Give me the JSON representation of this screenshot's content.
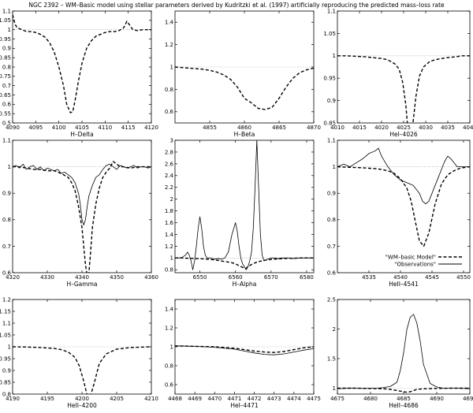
{
  "figure": {
    "title": "NGC 2392 – WM–Basic model using stellar parameters derived by Kudritzki et al. (1997) artificially reproducing the predicted mass–loss rate"
  },
  "chart_data": [
    {
      "type": "line",
      "xlabel": "H–Delta",
      "xlim": [
        4090,
        4120
      ],
      "ylim": [
        0.5,
        1.1
      ],
      "xticks": [
        4090,
        4095,
        4100,
        4105,
        4110,
        4115,
        4120
      ],
      "yticks": [
        0.5,
        0.55,
        0.6,
        0.65,
        0.7,
        0.75,
        0.8,
        0.85,
        0.9,
        0.95,
        1,
        1.05,
        1.1
      ],
      "ref_line": 1,
      "series": [
        {
          "style": "dashed",
          "x": [
            4090,
            4090.5,
            4091,
            4092,
            4093,
            4094,
            4095,
            4096,
            4097,
            4098,
            4099,
            4100,
            4101,
            4101.7,
            4102.5,
            4103,
            4103.5,
            4104.2,
            4105,
            4106,
            4107,
            4108,
            4109,
            4110,
            4111,
            4112,
            4113,
            4114,
            4114.7,
            4115.3,
            4116,
            4117,
            4118,
            4119,
            4120
          ],
          "y": [
            1.08,
            1.03,
            1.01,
            1.0,
            0.99,
            0.99,
            0.985,
            0.975,
            0.96,
            0.93,
            0.88,
            0.8,
            0.7,
            0.6,
            0.555,
            0.56,
            0.62,
            0.72,
            0.82,
            0.9,
            0.94,
            0.965,
            0.975,
            0.985,
            0.99,
            0.99,
            0.995,
            1.01,
            1.045,
            1.025,
            1.0,
            0.995,
            1.0,
            1.0,
            1.0
          ]
        }
      ]
    },
    {
      "type": "line",
      "xlabel": "H–Beta",
      "xlim": [
        4850,
        4870
      ],
      "ylim": [
        0.5,
        1.5
      ],
      "xticks": [
        4855,
        4860,
        4865,
        4870
      ],
      "yticks": [
        0.6,
        0.8,
        1,
        1.2,
        1.4
      ],
      "ref_line": 1,
      "series": [
        {
          "style": "dashed",
          "x": [
            4850,
            4852,
            4854,
            4855,
            4856,
            4857,
            4858,
            4859,
            4860,
            4861,
            4862,
            4863,
            4864,
            4865,
            4866,
            4867,
            4868,
            4869,
            4870
          ],
          "y": [
            1.0,
            0.99,
            0.98,
            0.97,
            0.955,
            0.93,
            0.89,
            0.82,
            0.72,
            0.68,
            0.63,
            0.62,
            0.64,
            0.72,
            0.82,
            0.9,
            0.95,
            0.975,
            0.99
          ]
        }
      ]
    },
    {
      "type": "line",
      "xlabel": "HeI–4026",
      "xlim": [
        4010,
        4040
      ],
      "ylim": [
        0.85,
        1.1
      ],
      "xticks": [
        4010,
        4015,
        4020,
        4025,
        4030,
        4035,
        4040
      ],
      "yticks": [
        0.85,
        0.9,
        0.95,
        1,
        1.05,
        1.1
      ],
      "ref_line": 1,
      "series": [
        {
          "style": "dashed",
          "x": [
            4010,
            4012,
            4014,
            4016,
            4018,
            4020,
            4021,
            4022,
            4023,
            4024,
            4024.8,
            4025.5,
            4026,
            4026.4,
            4027,
            4027.8,
            4028.6,
            4029.5,
            4031,
            4033,
            4035,
            4037,
            4038,
            4040
          ],
          "y": [
            1.0,
            1.0,
            0.999,
            0.998,
            0.996,
            0.994,
            0.992,
            0.988,
            0.982,
            0.97,
            0.94,
            0.89,
            0.83,
            0.82,
            0.84,
            0.91,
            0.955,
            0.975,
            0.988,
            0.993,
            0.996,
            0.998,
            1.0,
            1.0
          ]
        }
      ]
    },
    {
      "type": "line",
      "xlabel": "H–Gamma",
      "xlim": [
        4320,
        4360
      ],
      "ylim": [
        0.6,
        1.1
      ],
      "xticks": [
        4320,
        4330,
        4340,
        4350,
        4360
      ],
      "yticks": [
        0.6,
        0.7,
        0.8,
        0.9,
        1,
        1.1
      ],
      "ref_line": 1,
      "series": [
        {
          "style": "dashed",
          "x": [
            4320,
            4322,
            4324,
            4326,
            4328,
            4330,
            4332,
            4334,
            4336,
            4337,
            4338,
            4339,
            4340,
            4340.5,
            4341,
            4341.5,
            4342,
            4342.5,
            4343,
            4344,
            4345,
            4346,
            4347,
            4348,
            4349,
            4350,
            4351,
            4352,
            4354,
            4356,
            4358,
            4360
          ],
          "y": [
            1.0,
            1.0,
            0.995,
            0.99,
            0.99,
            0.985,
            0.985,
            0.975,
            0.96,
            0.94,
            0.91,
            0.85,
            0.77,
            0.7,
            0.63,
            0.59,
            0.6,
            0.68,
            0.77,
            0.86,
            0.92,
            0.96,
            0.98,
            0.995,
            1.02,
            1.01,
            1.0,
            1.0,
            0.995,
            1.0,
            1.0,
            1.0
          ]
        },
        {
          "style": "solid",
          "x": [
            4320,
            4321,
            4322,
            4323,
            4324,
            4325,
            4326,
            4327,
            4328,
            4329,
            4330,
            4331,
            4332,
            4333,
            4334,
            4335,
            4336,
            4337,
            4338,
            4339,
            4339.5,
            4340,
            4340.5,
            4341,
            4341.5,
            4342,
            4343,
            4344,
            4345,
            4346,
            4347,
            4348,
            4349,
            4350,
            4351,
            4352,
            4353,
            4354,
            4355,
            4356,
            4357,
            4358,
            4359,
            4360
          ],
          "y": [
            1.0,
            1.005,
            0.995,
            1.01,
            0.99,
            1.0,
            1.005,
            0.99,
            1.0,
            0.985,
            0.995,
            0.99,
            0.985,
            0.99,
            0.975,
            0.98,
            0.97,
            0.96,
            0.94,
            0.9,
            0.86,
            0.8,
            0.78,
            0.8,
            0.85,
            0.89,
            0.93,
            0.96,
            0.97,
            0.99,
            1.005,
            1.01,
            1.0,
            0.99,
            1.005,
            1.0,
            0.995,
            1.0,
            1.005,
            0.995,
            1.0,
            1.0,
            0.995,
            1.0
          ]
        }
      ]
    },
    {
      "type": "line",
      "xlabel": "H–Alpha",
      "xlim": [
        6543,
        6582
      ],
      "ylim": [
        0.75,
        3.0
      ],
      "xticks": [
        6550,
        6560,
        6570,
        6580
      ],
      "yticks": [
        0.8,
        1,
        1.2,
        1.4,
        1.6,
        1.8,
        2,
        2.2,
        2.4,
        2.6,
        2.8,
        3
      ],
      "ref_line": 1,
      "series": [
        {
          "style": "dashed",
          "x": [
            6543,
            6545,
            6547,
            6549,
            6551,
            6553,
            6555,
            6557,
            6559,
            6560,
            6561,
            6562,
            6562.8,
            6563.5,
            6564.5,
            6566,
            6568,
            6570,
            6572,
            6575,
            6578,
            6582
          ],
          "y": [
            1.0,
            1.0,
            0.995,
            0.99,
            0.985,
            0.975,
            0.96,
            0.94,
            0.92,
            0.9,
            0.87,
            0.84,
            0.82,
            0.85,
            0.89,
            0.93,
            0.96,
            0.975,
            0.985,
            0.995,
            1.0,
            1.0
          ]
        },
        {
          "style": "solid",
          "x": [
            6543,
            6544,
            6545,
            6546,
            6546.5,
            6547,
            6547.5,
            6548,
            6548.5,
            6549,
            6549.5,
            6550,
            6550.5,
            6551,
            6551.5,
            6552,
            6552.5,
            6553,
            6554,
            6555,
            6556,
            6557,
            6558,
            6559,
            6560,
            6560.5,
            6561,
            6561.5,
            6562,
            6562.5,
            6563,
            6563.5,
            6564,
            6564.5,
            6565,
            6565.5,
            6566,
            6566.5,
            6567,
            6567.5,
            6568,
            6569,
            6570,
            6571,
            6572,
            6573,
            6574,
            6575,
            6576,
            6578,
            6580,
            6582
          ],
          "y": [
            1.0,
            1.0,
            1.01,
            1.05,
            1.1,
            1.05,
            0.95,
            0.8,
            0.95,
            1.2,
            1.5,
            1.7,
            1.5,
            1.2,
            1.05,
            1.0,
            1.0,
            1.0,
            0.98,
            0.99,
            0.98,
            1.0,
            1.1,
            1.4,
            1.6,
            1.45,
            1.2,
            1.0,
            0.9,
            0.85,
            0.8,
            0.85,
            0.95,
            1.1,
            1.5,
            2.2,
            3.0,
            2.2,
            1.4,
            1.05,
            0.95,
            0.98,
            1.0,
            1.0,
            0.99,
            1.0,
            1.0,
            1.0,
            0.99,
            1.0,
            1.0,
            1.0
          ]
        }
      ]
    },
    {
      "type": "line",
      "xlabel": "HeII–4541",
      "xlim": [
        4530,
        4551
      ],
      "ylim": [
        0.6,
        1.1
      ],
      "xticks": [
        4535,
        4540,
        4545,
        4550
      ],
      "yticks": [
        0.6,
        0.7,
        0.8,
        0.9,
        1,
        1.1
      ],
      "ref_line": 1,
      "legend": {
        "position": "bottom-right",
        "entries": [
          "\"WM–basic Model\"",
          "\"Observations\""
        ]
      },
      "series": [
        {
          "name": "\"WM–basic Model\"",
          "style": "dashed",
          "x": [
            4530,
            4532,
            4534,
            4536,
            4537,
            4538,
            4539,
            4540,
            4541,
            4541.7,
            4542.3,
            4543,
            4543.7,
            4544.5,
            4545.5,
            4546.5,
            4547.5,
            4548.5,
            4549.5,
            4551
          ],
          "y": [
            1.0,
            0.998,
            0.996,
            0.993,
            0.99,
            0.985,
            0.975,
            0.955,
            0.92,
            0.87,
            0.8,
            0.72,
            0.7,
            0.75,
            0.86,
            0.935,
            0.97,
            0.985,
            0.995,
            1.0
          ]
        },
        {
          "name": "\"Observations\"",
          "style": "solid",
          "x": [
            4530,
            4531,
            4532,
            4533,
            4534,
            4535,
            4536,
            4536.5,
            4537,
            4538,
            4539,
            4540,
            4541,
            4542,
            4543,
            4543.5,
            4544,
            4544.5,
            4545,
            4546,
            4547,
            4547.5,
            4548,
            4549,
            4550,
            4551
          ],
          "y": [
            1.0,
            1.01,
            1.0,
            1.015,
            1.03,
            1.05,
            1.06,
            1.07,
            1.04,
            1.0,
            0.97,
            0.95,
            0.94,
            0.93,
            0.9,
            0.87,
            0.86,
            0.87,
            0.9,
            0.96,
            1.02,
            1.04,
            1.03,
            1.0,
            1.0,
            1.0
          ]
        }
      ]
    },
    {
      "type": "line",
      "xlabel": "HeII–4200",
      "xlim": [
        4190,
        4210
      ],
      "ylim": [
        0.8,
        1.2
      ],
      "xticks": [
        4190,
        4195,
        4200,
        4205,
        4210
      ],
      "yticks": [
        0.8,
        0.85,
        0.9,
        0.95,
        1,
        1.05,
        1.1,
        1.15,
        1.2
      ],
      "ref_line": 1,
      "series": [
        {
          "style": "dashed",
          "x": [
            4190,
            4192,
            4194,
            4196,
            4197,
            4198,
            4199,
            4199.6,
            4200.2,
            4200.7,
            4201.2,
            4201.8,
            4202.5,
            4203.5,
            4205,
            4207,
            4210
          ],
          "y": [
            1.0,
            0.999,
            0.997,
            0.993,
            0.988,
            0.978,
            0.955,
            0.92,
            0.86,
            0.8,
            0.79,
            0.85,
            0.93,
            0.97,
            0.99,
            0.997,
            1.0
          ]
        }
      ]
    },
    {
      "type": "line",
      "xlabel": "HeI–4471",
      "xlim": [
        4468,
        4475
      ],
      "ylim": [
        0.5,
        1.5
      ],
      "xticks": [
        4468,
        4469,
        4470,
        4471,
        4472,
        4473,
        4474,
        4475
      ],
      "yticks": [
        0.6,
        0.8,
        1,
        1.2,
        1.4
      ],
      "ref_line": 1,
      "series": [
        {
          "style": "dashed",
          "x": [
            4468,
            4469,
            4470,
            4471,
            4471.5,
            4472,
            4472.5,
            4473,
            4473.5,
            4474,
            4474.5,
            4475
          ],
          "y": [
            1.01,
            1.005,
            1.0,
            0.985,
            0.97,
            0.955,
            0.945,
            0.94,
            0.95,
            0.97,
            0.99,
            1.0
          ]
        },
        {
          "style": "solid",
          "x": [
            4468,
            4469,
            4470,
            4471,
            4471.5,
            4472,
            4472.5,
            4473,
            4473.5,
            4474,
            4474.5,
            4475
          ],
          "y": [
            1.01,
            1.005,
            0.995,
            0.975,
            0.955,
            0.935,
            0.92,
            0.915,
            0.925,
            0.945,
            0.965,
            0.98
          ]
        }
      ]
    },
    {
      "type": "line",
      "xlabel": "HeII–4686",
      "xlim": [
        4675,
        4695
      ],
      "ylim": [
        0.9,
        2.5
      ],
      "xticks": [
        4675,
        4680,
        4685,
        4690,
        4695
      ],
      "yticks": [
        1,
        1.5,
        2,
        2.5
      ],
      "ref_line": 1,
      "series": [
        {
          "style": "dashed",
          "x": [
            4675,
            4678,
            4680,
            4682,
            4683,
            4684,
            4685,
            4685.5,
            4686,
            4686.5,
            4687,
            4688,
            4690,
            4692,
            4695
          ],
          "y": [
            1.0,
            1.0,
            0.995,
            0.99,
            0.98,
            0.96,
            0.94,
            0.93,
            0.94,
            0.96,
            0.98,
            0.99,
            0.995,
            1.0,
            1.0
          ]
        },
        {
          "style": "solid",
          "x": [
            4675,
            4677,
            4679,
            4681,
            4682,
            4683,
            4684,
            4684.5,
            4685,
            4685.5,
            4686,
            4686.5,
            4687,
            4687.5,
            4688,
            4689,
            4690,
            4691,
            4693,
            4695
          ],
          "y": [
            0.99,
            1.0,
            0.995,
            1.0,
            1.01,
            1.03,
            1.1,
            1.3,
            1.6,
            2.0,
            2.2,
            2.25,
            2.1,
            1.8,
            1.4,
            1.08,
            1.02,
            1.0,
            1.0,
            0.99
          ]
        }
      ]
    }
  ]
}
